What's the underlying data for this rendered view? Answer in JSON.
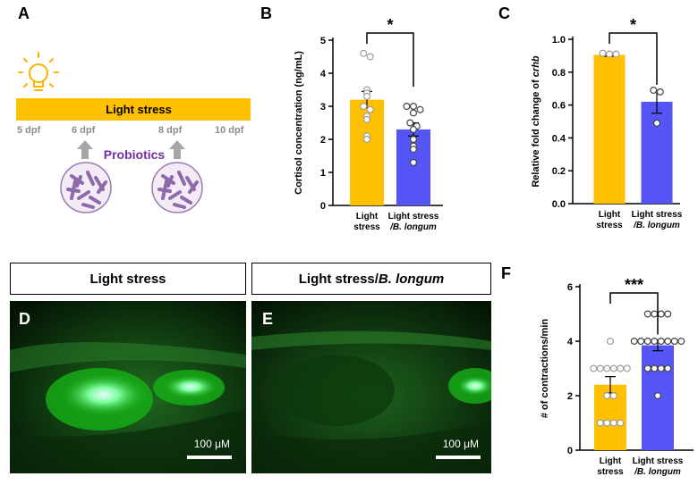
{
  "panels": {
    "A": "A",
    "B": "B",
    "C": "C",
    "D": "D",
    "E": "E",
    "F": "F"
  },
  "panelA": {
    "bar_label": "Light stress",
    "timepoints": [
      "5 dpf",
      "6 dpf",
      "8 dpf",
      "10 dpf"
    ],
    "probiotics_label": "Probiotics",
    "colors": {
      "bar": "#ffc000",
      "probiotics": "#7030a0",
      "timepoint": "#8c8c8c",
      "arrow": "#a6a6a6"
    },
    "icons": [
      "lightbulb-icon",
      "bacteria-icon",
      "up-arrow-icon"
    ]
  },
  "chartB": {
    "type": "bar",
    "ylabel": "Cortisol concentration (ng/mL)",
    "ylim": [
      0,
      5
    ],
    "yticks": [
      "0",
      "1",
      "2",
      "3",
      "4",
      "5"
    ],
    "categories": [
      {
        "line1": "Light",
        "line2": "stress"
      },
      {
        "line1": "Light stress",
        "line2": "/B. longum"
      }
    ],
    "values": [
      3.2,
      2.3
    ],
    "errors": [
      0.25,
      0.2
    ],
    "points": [
      [
        4.6,
        4.5,
        3.5,
        3.4,
        3.3,
        3.0,
        2.9,
        2.7,
        2.6,
        2.1,
        2.0
      ],
      [
        3.0,
        3.0,
        2.9,
        2.8,
        2.5,
        2.4,
        2.3,
        2.0,
        1.8,
        1.7,
        1.3
      ]
    ],
    "significance": "*",
    "colors": [
      "#ffc000",
      "#5555f5"
    ]
  },
  "chartC": {
    "type": "bar",
    "ylabel_prefix": "Relative fold change of ",
    "ylabel_gene": "crhb",
    "ylim": [
      0,
      1.0
    ],
    "yticks": [
      "0.0",
      "0.2",
      "0.4",
      "0.6",
      "0.8",
      "1.0"
    ],
    "categories": [
      {
        "line1": "Light",
        "line2": "stress"
      },
      {
        "line1": "Light stress",
        "line2": "/B. longum"
      }
    ],
    "values": [
      0.905,
      0.62
    ],
    "errors": [
      0.008,
      0.07
    ],
    "points": [
      [
        0.915,
        0.91,
        0.91
      ],
      [
        0.69,
        0.68,
        0.49
      ]
    ],
    "significance": "*",
    "colors": [
      "#ffc000",
      "#5555f5"
    ]
  },
  "chartF": {
    "type": "bar",
    "ylabel": "# of contractions/min",
    "ylim": [
      0,
      6
    ],
    "yticks": [
      "0",
      "2",
      "4",
      "6"
    ],
    "categories": [
      {
        "line1": "Light",
        "line2": "stress"
      },
      {
        "line1": "Light stress",
        "line2": "/B. longum"
      }
    ],
    "values": [
      2.4,
      3.85
    ],
    "errors": [
      0.3,
      0.2
    ],
    "points": [
      [
        4,
        3,
        3,
        3,
        3,
        3,
        3,
        2,
        2,
        1,
        1,
        1,
        1
      ],
      [
        5,
        5,
        5,
        5,
        4,
        4,
        4,
        4,
        4,
        4,
        4,
        4,
        3,
        3,
        3,
        3,
        2
      ]
    ],
    "significance": "***",
    "colors": [
      "#ffc000",
      "#5555f5"
    ]
  },
  "imageD": {
    "header": "Light stress",
    "scale": "100 μM"
  },
  "imageE": {
    "header_prefix": "Light stress/",
    "header_species": "B. longum",
    "scale": "100 μM"
  }
}
